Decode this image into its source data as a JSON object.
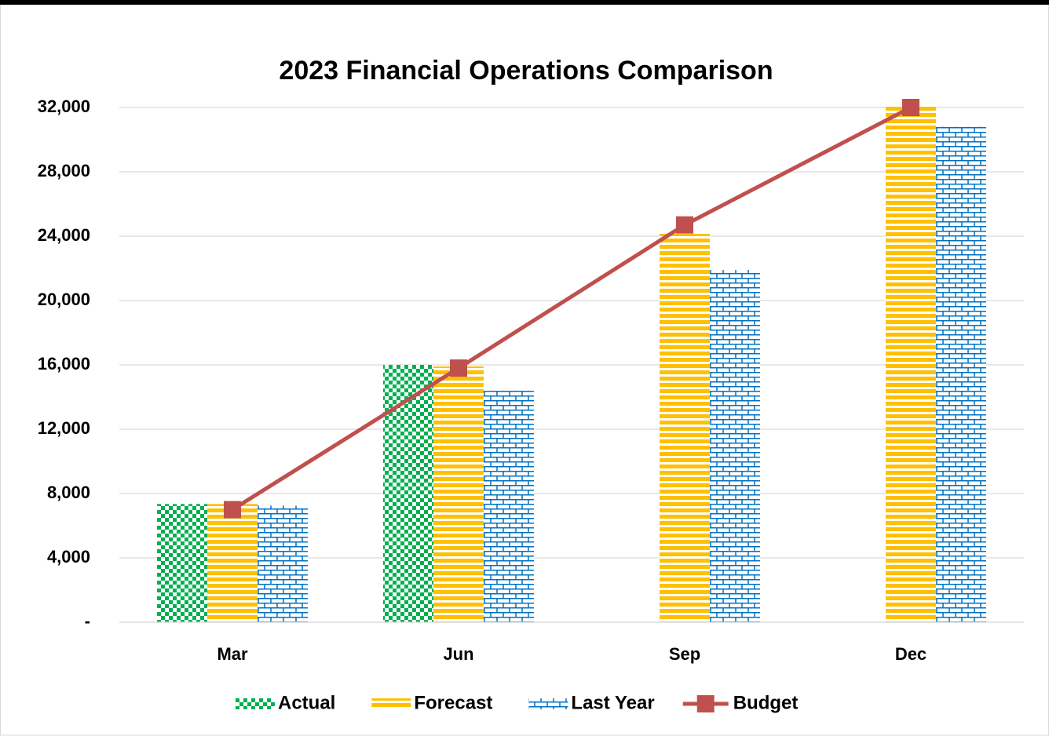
{
  "chart_data": {
    "type": "bar",
    "title": "2023 Financial Operations Comparison",
    "categories": [
      "Mar",
      "Jun",
      "Sep",
      "Dec"
    ],
    "series": [
      {
        "name": "Actual",
        "color": "#00b050",
        "pattern": "checker",
        "values": [
          7350,
          16000,
          null,
          null
        ]
      },
      {
        "name": "Forecast",
        "color": "#ffc000",
        "pattern": "horizontal",
        "values": [
          7350,
          15900,
          24150,
          32200
        ]
      },
      {
        "name": "Last Year",
        "color": "#0070c0",
        "pattern": "brick",
        "values": [
          7250,
          14400,
          21900,
          30800
        ]
      },
      {
        "name": "Budget",
        "color": "#c0504d",
        "type": "line",
        "values": [
          7000,
          15800,
          24700,
          32000
        ]
      }
    ],
    "ylim": [
      0,
      32000
    ],
    "yticks": [
      {
        "value": 0,
        "label": "-"
      },
      {
        "value": 4000,
        "label": "4,000"
      },
      {
        "value": 8000,
        "label": "8,000"
      },
      {
        "value": 12000,
        "label": "12,000"
      },
      {
        "value": 16000,
        "label": "16,000"
      },
      {
        "value": 20000,
        "label": "20,000"
      },
      {
        "value": 24000,
        "label": "24,000"
      },
      {
        "value": 28000,
        "label": "28,000"
      },
      {
        "value": 32000,
        "label": "32,000"
      }
    ],
    "grid": true,
    "legend": "bottom"
  }
}
